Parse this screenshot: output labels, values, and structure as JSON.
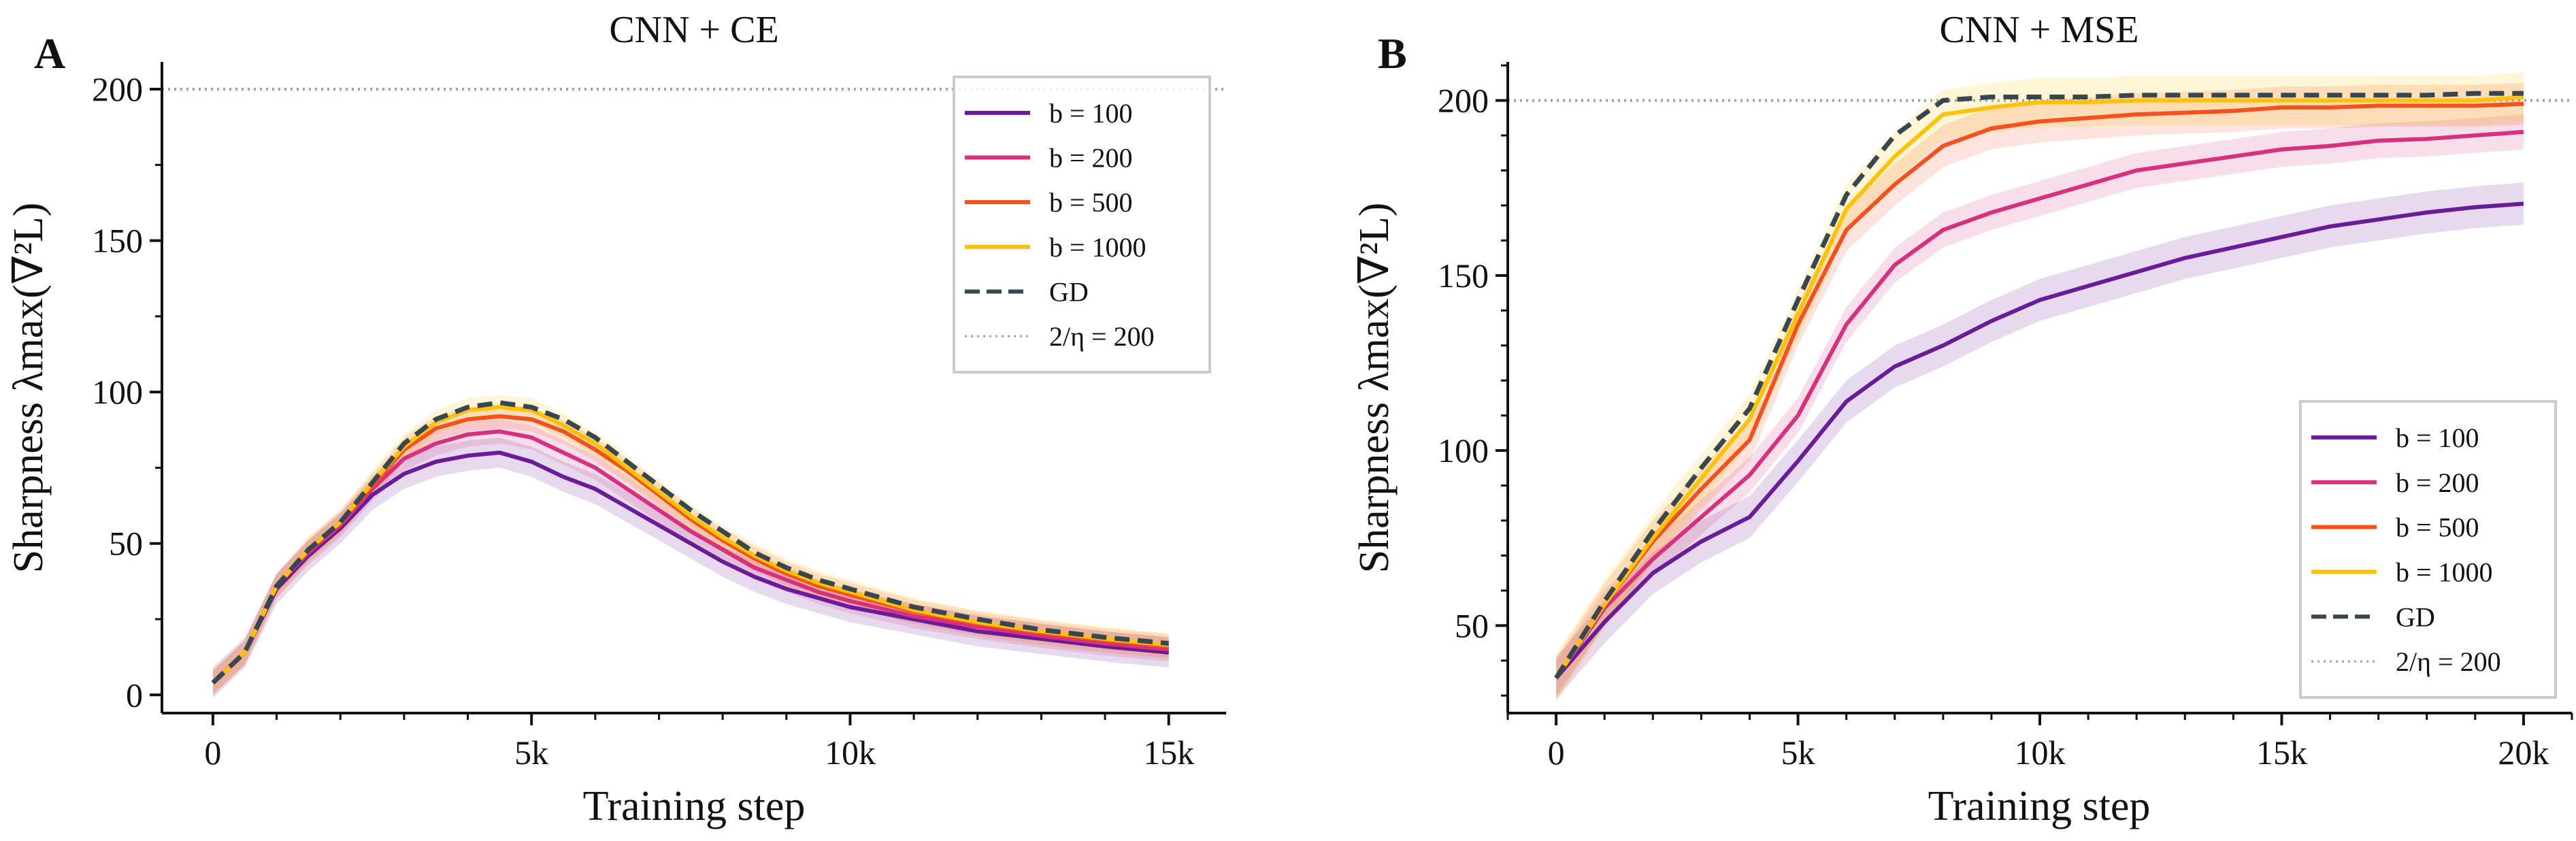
{
  "colors": {
    "b100": "#6a1b9a",
    "b200": "#d6307f",
    "b500": "#f4511e",
    "b1000": "#ffc107",
    "GD": "#37474f",
    "threshold": "#90a4ae"
  },
  "chart_data": [
    {
      "type": "line",
      "panel_label": "A",
      "title": "CNN + CE",
      "xlabel": "Training step",
      "ylabel": "Sharpness λmax(∇²L)",
      "xlim": [
        -800,
        15900
      ],
      "ylim": [
        -6,
        209
      ],
      "xticks": [
        0,
        5000,
        10000,
        15000
      ],
      "xtick_labels": [
        "0",
        "5k",
        "10k",
        "15k"
      ],
      "yticks": [
        0,
        50,
        100,
        150,
        200
      ],
      "ytick_labels": [
        "0",
        "50",
        "100",
        "150",
        "200"
      ],
      "grid": false,
      "legend_position": "top-right",
      "threshold": {
        "label": "2/η = 200",
        "value": 200
      },
      "x": [
        0,
        500,
        1000,
        1500,
        2000,
        2500,
        3000,
        3500,
        4000,
        4500,
        5000,
        5500,
        6000,
        6500,
        7000,
        7500,
        8000,
        8500,
        9000,
        9500,
        10000,
        11000,
        12000,
        13000,
        14000,
        15000
      ],
      "series": [
        {
          "name": "b = 100",
          "color_key": "b100",
          "style": "solid",
          "spread": 5,
          "values": [
            4,
            14,
            35,
            46,
            55,
            66,
            73,
            77,
            79,
            80,
            77,
            72,
            68,
            62,
            56,
            50,
            44,
            39,
            35,
            32,
            29,
            25,
            21,
            18.5,
            16,
            14
          ]
        },
        {
          "name": "b = 200",
          "color_key": "b200",
          "style": "solid",
          "spread": 4,
          "values": [
            4,
            14,
            36,
            47,
            56,
            68,
            78,
            83,
            86,
            87,
            85,
            80,
            75,
            68,
            61,
            54,
            48,
            42,
            38,
            34,
            31,
            26,
            22.5,
            19.5,
            17,
            15
          ]
        },
        {
          "name": "b = 500",
          "color_key": "b500",
          "style": "solid",
          "spread": 4,
          "values": [
            4,
            14,
            36,
            48,
            57,
            69,
            81,
            88,
            91,
            92,
            91,
            87,
            81,
            74,
            66,
            58,
            51,
            45,
            40,
            36,
            33,
            27.5,
            23.5,
            20.5,
            18,
            16
          ]
        },
        {
          "name": "b = 1000",
          "color_key": "b1000",
          "style": "solid",
          "spread": 4,
          "values": [
            4,
            14,
            36,
            48,
            57,
            70,
            82,
            90,
            94,
            95,
            94,
            89,
            83,
            75,
            67,
            59,
            52,
            46,
            41,
            37,
            34,
            28,
            24,
            21,
            18.5,
            16.5
          ]
        },
        {
          "name": "GD",
          "color_key": "GD",
          "style": "dashed",
          "spread": 0,
          "values": [
            4,
            14,
            36,
            48,
            57,
            70,
            83,
            91,
            95,
            96.5,
            95,
            91,
            85,
            77,
            69,
            61,
            54,
            47,
            42,
            38,
            35,
            29,
            25,
            21.5,
            19,
            17
          ]
        }
      ]
    },
    {
      "type": "line",
      "panel_label": "B",
      "title": "CNN + MSE",
      "xlabel": "Training step",
      "ylabel": "Sharpness λmax(∇²L)",
      "xlim": [
        -1000,
        21000
      ],
      "ylim": [
        25,
        211
      ],
      "xticks": [
        0,
        5000,
        10000,
        15000,
        20000
      ],
      "xtick_labels": [
        "0",
        "5k",
        "10k",
        "15k",
        "20k"
      ],
      "yticks": [
        50,
        100,
        150,
        200
      ],
      "ytick_labels": [
        "50",
        "100",
        "150",
        "200"
      ],
      "grid": false,
      "legend_position": "lower-right",
      "threshold": {
        "label": "2/η = 200",
        "value": 200
      },
      "x": [
        0,
        1000,
        2000,
        3000,
        4000,
        5000,
        6000,
        7000,
        8000,
        9000,
        10000,
        11000,
        12000,
        13000,
        14000,
        15000,
        16000,
        17000,
        18000,
        19000,
        20000
      ],
      "series": [
        {
          "name": "b = 100",
          "color_key": "b100",
          "style": "solid",
          "spread": 6,
          "values": [
            35,
            51,
            65,
            74,
            81,
            97,
            114,
            124,
            130,
            137,
            143,
            147,
            151,
            155,
            158,
            161,
            164,
            166,
            168,
            169.5,
            170.5
          ]
        },
        {
          "name": "b = 200",
          "color_key": "b200",
          "style": "solid",
          "spread": 5,
          "values": [
            35,
            55,
            69,
            81,
            93,
            110,
            136,
            153,
            163,
            168,
            172,
            176,
            180,
            182,
            184,
            186,
            187,
            188.5,
            189,
            190,
            191
          ]
        },
        {
          "name": "b = 500",
          "color_key": "b500",
          "style": "solid",
          "spread": 6,
          "values": [
            35,
            56,
            74,
            89,
            103,
            136,
            163,
            176,
            187,
            192,
            194,
            195,
            196,
            196.5,
            197,
            198,
            198,
            198.5,
            198.5,
            198.5,
            199
          ]
        },
        {
          "name": "b = 1000",
          "color_key": "b1000",
          "style": "solid",
          "spread": 7,
          "values": [
            35,
            56,
            75,
            92,
            109,
            139,
            169,
            184,
            196,
            198,
            199.5,
            199.5,
            200,
            200,
            200,
            200,
            200,
            200,
            200,
            200,
            201
          ]
        },
        {
          "name": "GD",
          "color_key": "GD",
          "style": "dashed",
          "spread": 0,
          "values": [
            35,
            57,
            77,
            95,
            112,
            143,
            173,
            190,
            200,
            201,
            201,
            201,
            201.5,
            201.5,
            201.5,
            201.5,
            201.5,
            201.5,
            201.5,
            202,
            202
          ]
        }
      ]
    }
  ]
}
